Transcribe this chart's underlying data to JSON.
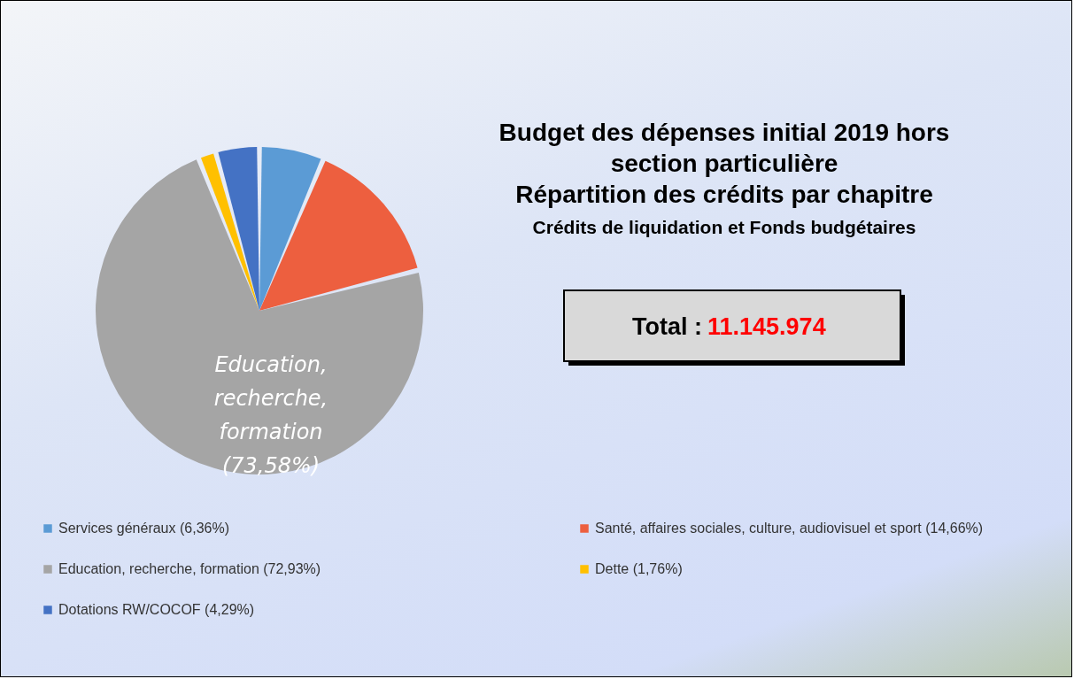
{
  "chart_data": {
    "type": "pie",
    "title": "Budget des dépenses initial 2019 hors\nsection particulière\nRépartition des crédits par chapitre",
    "subtitle": "Crédits de liquidation et Fonds budgétaires",
    "categories": [
      "Services généraux  (6,36%)",
      "Santé, affaires sociales, culture, audiovisuel et sport  (14,66%)",
      "Education, recherche, formation  (72,93%)",
      "Dette  (1,76%)",
      "Dotations RW/COCOF  (4,29%)"
    ],
    "values": [
      6.36,
      14.66,
      72.93,
      1.76,
      4.29
    ],
    "colors": [
      "#5b9bd5",
      "#ed5f3f",
      "#a5a5a5",
      "#ffc000",
      "#4472c4"
    ],
    "annotations": [
      "Education, recherche, formation (73,58%)",
      "Total : 11.145.974"
    ],
    "legend": "bottom"
  }
}
